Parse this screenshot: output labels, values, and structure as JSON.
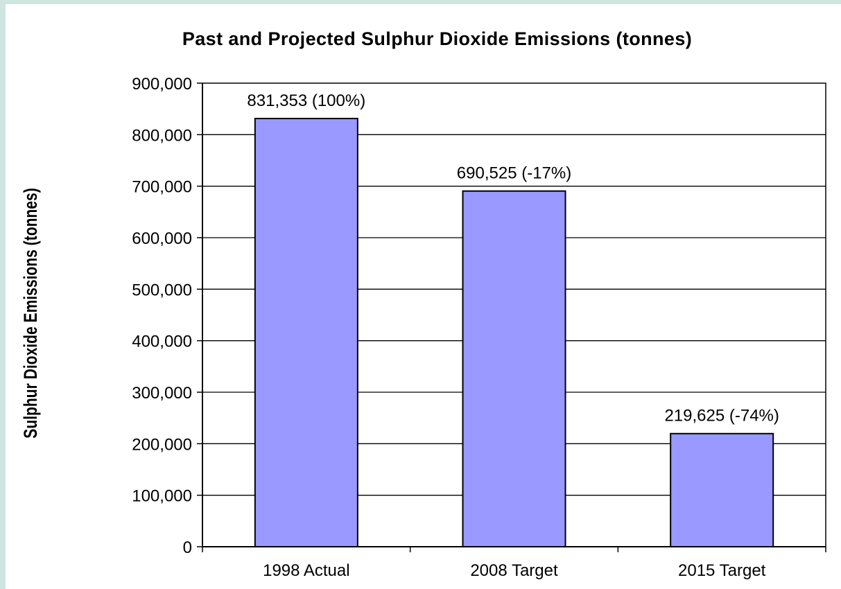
{
  "chart_data": {
    "type": "bar",
    "title": "Past and Projected Sulphur Dioxide Emissions (tonnes)",
    "xlabel": "",
    "ylabel": "Sulphur Dioxide Emissions (tonnes)",
    "categories": [
      "1998 Actual",
      "2008 Target",
      "2015 Target"
    ],
    "values": [
      831353,
      690525,
      219625
    ],
    "data_labels": [
      "831,353 (100%)",
      "690,525 (-17%)",
      "219,625 (-74%)"
    ],
    "ylim": [
      0,
      900000
    ],
    "yticks": [
      0,
      100000,
      200000,
      300000,
      400000,
      500000,
      600000,
      700000,
      800000,
      900000
    ],
    "ytick_labels": [
      "0",
      "100,000",
      "200,000",
      "300,000",
      "400,000",
      "500,000",
      "600,000",
      "700,000",
      "800,000",
      "900,000"
    ],
    "grid": true,
    "legend": "none",
    "colors": {
      "bar_fill": "#9999ff",
      "bar_stroke": "#000000",
      "grid": "#000000",
      "background": "#ffffff",
      "frame": "#cfe6e0"
    }
  }
}
